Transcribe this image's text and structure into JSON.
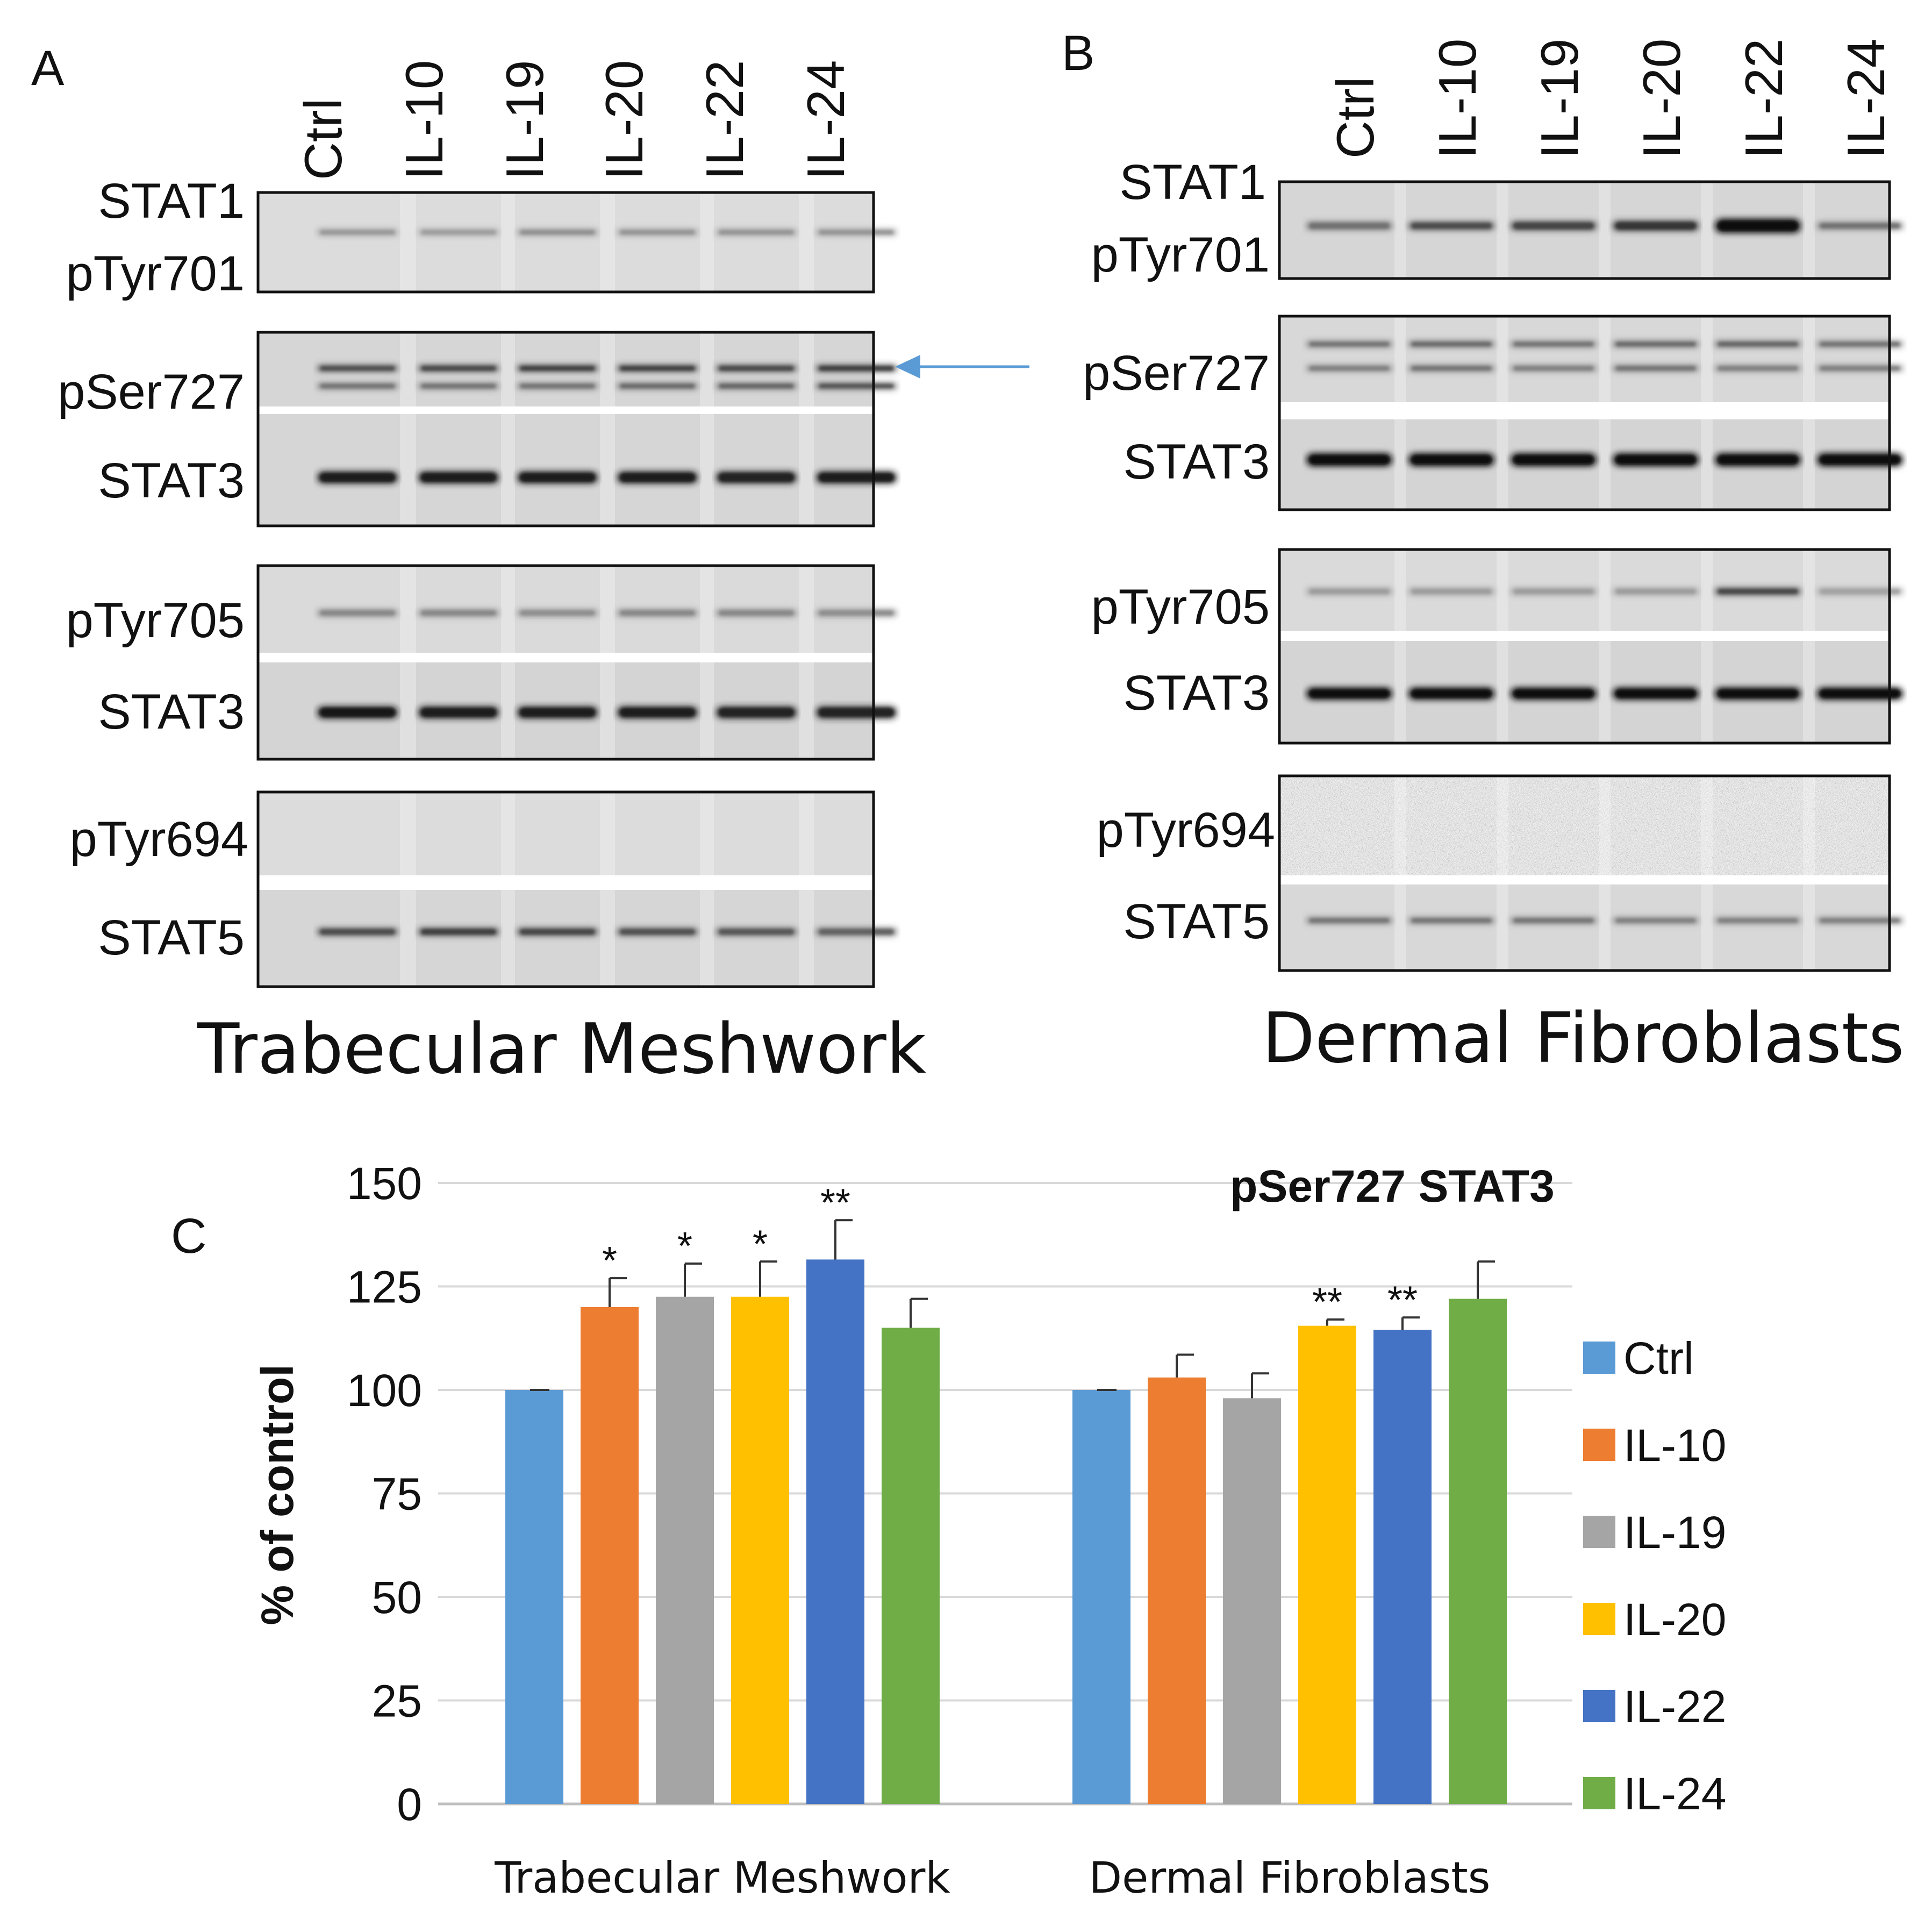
{
  "panel_a": {
    "letter": "A",
    "lanes": [
      "Ctrl",
      "IL-10",
      "IL-19",
      "IL-20",
      "IL-22",
      "IL-24"
    ],
    "blot_labels": [
      "STAT1",
      "pTyr701",
      "pSer727",
      "STAT3",
      "pTyr705",
      "STAT3",
      "pTyr694",
      "STAT5"
    ],
    "title": "Trabecular Meshwork"
  },
  "panel_b": {
    "letter": "B",
    "lanes": [
      "Ctrl",
      "IL-10",
      "IL-19",
      "IL-20",
      "IL-22",
      "IL-24"
    ],
    "blot_labels": [
      "STAT1",
      "pTyr701",
      "pSer727",
      "STAT3",
      "pTyr705",
      "STAT3",
      "pTyr694",
      "STAT5"
    ],
    "title": "Dermal Fibroblasts"
  },
  "panel_c": {
    "letter": "C"
  },
  "colors": {
    "Ctrl": "#5B9BD5",
    "IL-10": "#ED7D31",
    "IL-19": "#A5A5A5",
    "IL-20": "#FFC000",
    "IL-22": "#4472C4",
    "IL-24": "#70AD47"
  },
  "chart_data": {
    "type": "bar",
    "title": "pSer727 STAT3",
    "xlabel": "",
    "ylabel": "% of control",
    "ylim": [
      0,
      150
    ],
    "yticks": [
      "0",
      "25",
      "50",
      "75",
      "100",
      "125",
      "150"
    ],
    "categories": [
      "Trabecular Meshwork",
      "Dermal Fibroblasts"
    ],
    "series": [
      {
        "name": "Ctrl",
        "values": [
          100,
          100
        ],
        "errors": [
          0,
          0
        ],
        "sig": [
          "",
          ""
        ]
      },
      {
        "name": "IL-10",
        "values": [
          120,
          103
        ],
        "errors": [
          7,
          5.5
        ],
        "sig": [
          "*",
          ""
        ]
      },
      {
        "name": "IL-19",
        "values": [
          122.5,
          98
        ],
        "errors": [
          8,
          6
        ],
        "sig": [
          "*",
          ""
        ]
      },
      {
        "name": "IL-20",
        "values": [
          122.5,
          115.5
        ],
        "errors": [
          8.5,
          1.5
        ],
        "sig": [
          "*",
          "**"
        ]
      },
      {
        "name": "IL-22",
        "values": [
          131.5,
          114.5
        ],
        "errors": [
          9.5,
          3
        ],
        "sig": [
          "**",
          "**"
        ]
      },
      {
        "name": "IL-24",
        "values": [
          115,
          122
        ],
        "errors": [
          7,
          9
        ],
        "sig": [
          "",
          ""
        ]
      }
    ],
    "grid": true,
    "legend": "right"
  }
}
